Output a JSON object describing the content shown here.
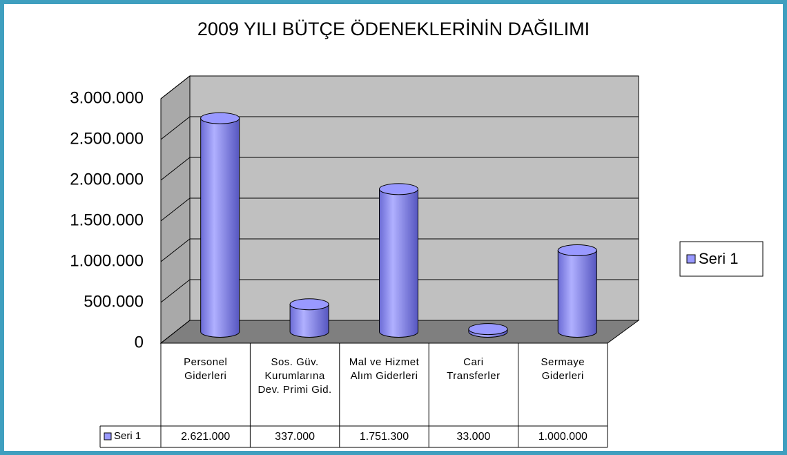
{
  "chart_data": {
    "type": "bar",
    "title": "2009 YILI BÜTÇE ÖDENEKLERİNİN DAĞILIMI",
    "categories": [
      "Personel Giderleri",
      "Sos. Güv. Kurumlarına Dev. Primi Gid.",
      "Mal ve Hizmet Alım Giderleri",
      "Cari Transferler",
      "Sermaye Giderleri"
    ],
    "series": [
      {
        "name": "Seri 1",
        "color": "#9999ff",
        "values": [
          2621000,
          337000,
          1751300,
          33000,
          1000000
        ],
        "value_labels": [
          "2.621.000",
          "337.000",
          "1.751.300",
          "33.000",
          "1.000.000"
        ]
      }
    ],
    "ylim": [
      0,
      3000000
    ],
    "yticks": [
      {
        "value": 0,
        "label": "0"
      },
      {
        "value": 500000,
        "label": "500.000"
      },
      {
        "value": 1000000,
        "label": "1.000.000"
      },
      {
        "value": 1500000,
        "label": "1.500.000"
      },
      {
        "value": 2000000,
        "label": "2.000.000"
      },
      {
        "value": 2500000,
        "label": "2.500.000"
      },
      {
        "value": 3000000,
        "label": "3.000.000"
      }
    ],
    "grid": true,
    "legend": "right"
  }
}
